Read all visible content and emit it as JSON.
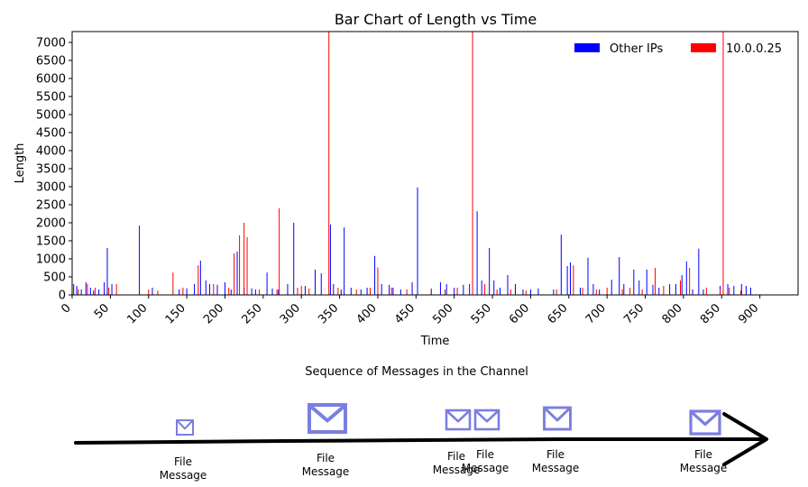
{
  "chart_data": {
    "type": "bar",
    "title": "Bar Chart of Length vs Time",
    "xlabel": "Time",
    "ylabel": "Length",
    "xlim": [
      0,
      950
    ],
    "ylim": [
      0,
      7300
    ],
    "xticks": [
      0,
      50,
      100,
      150,
      200,
      250,
      300,
      350,
      400,
      450,
      500,
      550,
      600,
      650,
      700,
      750,
      800,
      850,
      900
    ],
    "yticks": [
      0,
      500,
      1000,
      1500,
      2000,
      2500,
      3000,
      3500,
      4000,
      4500,
      5000,
      5500,
      6000,
      6500,
      7000
    ],
    "legend_position": "top-right",
    "series": [
      {
        "name": "Other IPs",
        "color": "#0000ff",
        "points": [
          [
            2,
            300
          ],
          [
            6,
            250
          ],
          [
            12,
            150
          ],
          [
            18,
            350
          ],
          [
            24,
            200
          ],
          [
            28,
            120
          ],
          [
            35,
            150
          ],
          [
            42,
            350
          ],
          [
            46,
            1300
          ],
          [
            52,
            300
          ],
          [
            88,
            1920
          ],
          [
            105,
            200
          ],
          [
            140,
            150
          ],
          [
            150,
            180
          ],
          [
            160,
            300
          ],
          [
            168,
            950
          ],
          [
            175,
            400
          ],
          [
            180,
            300
          ],
          [
            190,
            280
          ],
          [
            200,
            350
          ],
          [
            208,
            150
          ],
          [
            216,
            1200
          ],
          [
            225,
            200
          ],
          [
            235,
            180
          ],
          [
            240,
            150
          ],
          [
            255,
            620
          ],
          [
            262,
            180
          ],
          [
            270,
            150
          ],
          [
            282,
            300
          ],
          [
            290,
            2000
          ],
          [
            305,
            250
          ],
          [
            318,
            700
          ],
          [
            326,
            600
          ],
          [
            338,
            1950
          ],
          [
            342,
            300
          ],
          [
            352,
            150
          ],
          [
            356,
            1870
          ],
          [
            365,
            200
          ],
          [
            378,
            150
          ],
          [
            386,
            200
          ],
          [
            396,
            1080
          ],
          [
            405,
            300
          ],
          [
            415,
            280
          ],
          [
            420,
            200
          ],
          [
            430,
            150
          ],
          [
            445,
            350
          ],
          [
            452,
            2980
          ],
          [
            470,
            150
          ],
          [
            482,
            350
          ],
          [
            490,
            300
          ],
          [
            500,
            200
          ],
          [
            512,
            280
          ],
          [
            520,
            300
          ],
          [
            530,
            2320
          ],
          [
            536,
            400
          ],
          [
            546,
            1300
          ],
          [
            552,
            400
          ],
          [
            560,
            200
          ],
          [
            570,
            550
          ],
          [
            580,
            300
          ],
          [
            590,
            150
          ],
          [
            600,
            150
          ],
          [
            610,
            180
          ],
          [
            630,
            150
          ],
          [
            640,
            1670
          ],
          [
            648,
            800
          ],
          [
            652,
            900
          ],
          [
            665,
            200
          ],
          [
            675,
            1030
          ],
          [
            682,
            300
          ],
          [
            690,
            150
          ],
          [
            706,
            420
          ],
          [
            716,
            1050
          ],
          [
            722,
            300
          ],
          [
            735,
            700
          ],
          [
            742,
            400
          ],
          [
            752,
            700
          ],
          [
            760,
            280
          ],
          [
            768,
            200
          ],
          [
            782,
            300
          ],
          [
            790,
            300
          ],
          [
            798,
            550
          ],
          [
            804,
            930
          ],
          [
            812,
            150
          ],
          [
            820,
            1280
          ],
          [
            826,
            150
          ],
          [
            848,
            250
          ],
          [
            858,
            300
          ],
          [
            866,
            250
          ],
          [
            876,
            300
          ],
          [
            882,
            250
          ],
          [
            888,
            200
          ]
        ]
      },
      {
        "name": "10.0.0.25",
        "color": "#ff0000",
        "points": [
          [
            8,
            150
          ],
          [
            20,
            300
          ],
          [
            30,
            200
          ],
          [
            48,
            200
          ],
          [
            58,
            300
          ],
          [
            100,
            150
          ],
          [
            112,
            120
          ],
          [
            132,
            620
          ],
          [
            145,
            200
          ],
          [
            165,
            820
          ],
          [
            185,
            300
          ],
          [
            205,
            200
          ],
          [
            212,
            1150
          ],
          [
            219,
            1650
          ],
          [
            225,
            2000
          ],
          [
            229,
            1600
          ],
          [
            245,
            150
          ],
          [
            268,
            150
          ],
          [
            271,
            2400
          ],
          [
            295,
            200
          ],
          [
            300,
            250
          ],
          [
            310,
            180
          ],
          [
            336,
            7300
          ],
          [
            348,
            200
          ],
          [
            372,
            150
          ],
          [
            390,
            200
          ],
          [
            400,
            760
          ],
          [
            418,
            200
          ],
          [
            438,
            150
          ],
          [
            470,
            180
          ],
          [
            488,
            150
          ],
          [
            504,
            200
          ],
          [
            524,
            7300
          ],
          [
            540,
            300
          ],
          [
            556,
            150
          ],
          [
            574,
            150
          ],
          [
            594,
            120
          ],
          [
            634,
            150
          ],
          [
            656,
            820
          ],
          [
            668,
            200
          ],
          [
            686,
            150
          ],
          [
            700,
            200
          ],
          [
            720,
            150
          ],
          [
            730,
            200
          ],
          [
            746,
            150
          ],
          [
            763,
            750
          ],
          [
            774,
            250
          ],
          [
            796,
            400
          ],
          [
            808,
            750
          ],
          [
            830,
            200
          ],
          [
            848,
            150
          ],
          [
            852,
            7300
          ],
          [
            860,
            200
          ],
          [
            875,
            120
          ]
        ]
      }
    ]
  },
  "timeline": {
    "title": "Sequence of Messages in the Channel",
    "messages": [
      {
        "label_line1": "File",
        "label_line2": "Message",
        "size": "small"
      },
      {
        "label_line1": "File",
        "label_line2": "Message",
        "size": "large"
      },
      {
        "label_line1": "File",
        "label_line2": "Message",
        "size": "medium"
      },
      {
        "label_line1": "File",
        "label_line2": "Message",
        "size": "medium"
      },
      {
        "label_line1": "File",
        "label_line2": "Message",
        "size": "medium"
      },
      {
        "label_line1": "File",
        "label_line2": "Message",
        "size": "medium"
      }
    ],
    "envelope_color": "#7b7ee0",
    "arrow_color": "#000000"
  }
}
